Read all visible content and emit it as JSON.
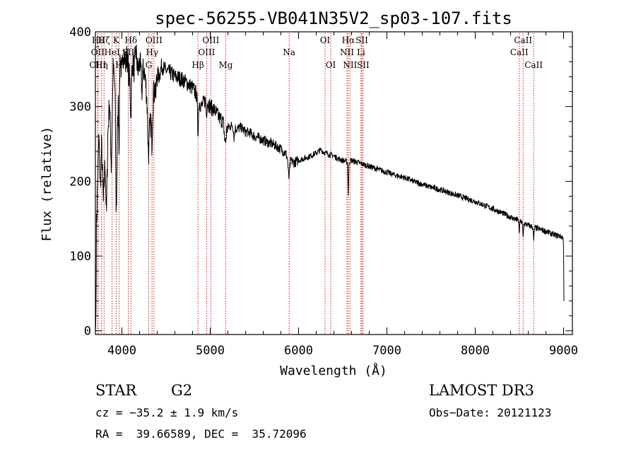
{
  "chart_data": {
    "type": "line",
    "title": "spec-56255-VB041N35V2_sp03-107.fits",
    "xlabel": "Wavelength (Å)",
    "ylabel": "Flux (relative)",
    "xlim": [
      3700,
      9100
    ],
    "ylim": [
      -5,
      400
    ],
    "xticks": [
      4000,
      5000,
      6000,
      7000,
      8000,
      9000
    ],
    "yticks": [
      0,
      100,
      200,
      300,
      400
    ],
    "colors": {
      "spectrum": "#000000",
      "line_markers": "#cc0000"
    },
    "continuum": [
      [
        3700,
        0
      ],
      [
        3705,
        10
      ],
      [
        3712,
        140
      ],
      [
        3725,
        200
      ],
      [
        3740,
        260
      ],
      [
        3755,
        190
      ],
      [
        3770,
        250
      ],
      [
        3790,
        170
      ],
      [
        3810,
        230
      ],
      [
        3825,
        150
      ],
      [
        3840,
        260
      ],
      [
        3860,
        310
      ],
      [
        3880,
        220
      ],
      [
        3900,
        350
      ],
      [
        3920,
        330
      ],
      [
        3940,
        200
      ],
      [
        3960,
        320
      ],
      [
        3980,
        370
      ],
      [
        4000,
        340
      ],
      [
        4020,
        380
      ],
      [
        4040,
        355
      ],
      [
        4060,
        370
      ],
      [
        4080,
        340
      ],
      [
        4100,
        330
      ],
      [
        4120,
        360
      ],
      [
        4140,
        350
      ],
      [
        4160,
        375
      ],
      [
        4180,
        345
      ],
      [
        4200,
        360
      ],
      [
        4220,
        340
      ],
      [
        4250,
        350
      ],
      [
        4280,
        320
      ],
      [
        4300,
        300
      ],
      [
        4320,
        275
      ],
      [
        4350,
        310
      ],
      [
        4380,
        330
      ],
      [
        4400,
        345
      ],
      [
        4420,
        340
      ],
      [
        4450,
        355
      ],
      [
        4480,
        350
      ],
      [
        4500,
        348
      ],
      [
        4550,
        345
      ],
      [
        4600,
        340
      ],
      [
        4650,
        338
      ],
      [
        4700,
        335
      ],
      [
        4750,
        330
      ],
      [
        4800,
        325
      ],
      [
        4850,
        315
      ],
      [
        4900,
        300
      ],
      [
        4950,
        310
      ],
      [
        5000,
        300
      ],
      [
        5050,
        295
      ],
      [
        5100,
        285
      ],
      [
        5150,
        280
      ],
      [
        5200,
        272
      ],
      [
        5250,
        275
      ],
      [
        5300,
        270
      ],
      [
        5350,
        272
      ],
      [
        5400,
        266
      ],
      [
        5450,
        265
      ],
      [
        5500,
        260
      ],
      [
        5550,
        258
      ],
      [
        5600,
        255
      ],
      [
        5650,
        252
      ],
      [
        5700,
        250
      ],
      [
        5750,
        247
      ],
      [
        5800,
        243
      ],
      [
        5850,
        238
      ],
      [
        5900,
        228
      ],
      [
        5950,
        225
      ],
      [
        6000,
        228
      ],
      [
        6050,
        230
      ],
      [
        6100,
        232
      ],
      [
        6150,
        235
      ],
      [
        6200,
        238
      ],
      [
        6250,
        242
      ],
      [
        6300,
        238
      ],
      [
        6350,
        236
      ],
      [
        6400,
        234
      ],
      [
        6450,
        230
      ],
      [
        6500,
        228
      ],
      [
        6550,
        226
      ],
      [
        6600,
        228
      ],
      [
        6650,
        226
      ],
      [
        6700,
        224
      ],
      [
        6750,
        222
      ],
      [
        6800,
        220
      ],
      [
        6850,
        218
      ],
      [
        6900,
        216
      ],
      [
        6950,
        214
      ],
      [
        7000,
        212
      ],
      [
        7100,
        208
      ],
      [
        7200,
        205
      ],
      [
        7300,
        200
      ],
      [
        7400,
        196
      ],
      [
        7500,
        192
      ],
      [
        7600,
        189
      ],
      [
        7700,
        185
      ],
      [
        7800,
        181
      ],
      [
        7900,
        177
      ],
      [
        8000,
        173
      ],
      [
        8100,
        168
      ],
      [
        8200,
        163
      ],
      [
        8300,
        158
      ],
      [
        8400,
        152
      ],
      [
        8500,
        147
      ],
      [
        8600,
        141
      ],
      [
        8700,
        137
      ],
      [
        8800,
        133
      ],
      [
        8900,
        128
      ],
      [
        8950,
        127
      ],
      [
        8990,
        125
      ],
      [
        9000,
        118
      ],
      [
        9005,
        20
      ]
    ],
    "absorption": [
      [
        3934,
        70,
        6
      ],
      [
        3968,
        90,
        6
      ],
      [
        4102,
        40,
        8
      ],
      [
        4227,
        20,
        6
      ],
      [
        4300,
        60,
        12
      ],
      [
        4340,
        45,
        8
      ],
      [
        4383,
        20,
        6
      ],
      [
        4861,
        45,
        8
      ],
      [
        4957,
        20,
        6
      ],
      [
        5170,
        25,
        15
      ],
      [
        5270,
        15,
        8
      ],
      [
        5890,
        25,
        12
      ],
      [
        6563,
        45,
        6
      ],
      [
        8498,
        15,
        6
      ],
      [
        8542,
        20,
        6
      ],
      [
        8662,
        18,
        6
      ]
    ],
    "line_marks": [
      {
        "x": 3730,
        "label": "Hθ",
        "row": 0
      },
      {
        "x": 3727,
        "label": "OII",
        "row": 1
      },
      {
        "x": 3727,
        "label": "OIII",
        "row": 2
      },
      {
        "x": 3770,
        "label": "Hη",
        "row": 2
      },
      {
        "x": 3798,
        "label": "Hζ",
        "row": 0
      },
      {
        "x": 3889,
        "label": "HeI",
        "row": 1
      },
      {
        "x": 3934,
        "label": "K",
        "row": 0
      },
      {
        "x": 3968,
        "label": "H",
        "row": 2
      },
      {
        "x": 4072,
        "label": "SII",
        "row": 1
      },
      {
        "x": 4102,
        "label": "Hδ",
        "row": 0
      },
      {
        "x": 4304,
        "label": "G",
        "row": 2
      },
      {
        "x": 4341,
        "label": "Hγ",
        "row": 1
      },
      {
        "x": 4363,
        "label": "OIII",
        "row": 0
      },
      {
        "x": 4861,
        "label": "Hβ",
        "row": 2
      },
      {
        "x": 4959,
        "label": "OIII",
        "row": 1
      },
      {
        "x": 5007,
        "label": "OIII",
        "row": 0
      },
      {
        "x": 5175,
        "label": "Mg",
        "row": 2
      },
      {
        "x": 5893,
        "label": "Na",
        "row": 1
      },
      {
        "x": 6300,
        "label": "OI",
        "row": 0
      },
      {
        "x": 6364,
        "label": "OI",
        "row": 2
      },
      {
        "x": 6548,
        "label": "NII",
        "row": 1
      },
      {
        "x": 6563,
        "label": "Hα",
        "row": 0
      },
      {
        "x": 6583,
        "label": "NII",
        "row": 2
      },
      {
        "x": 6707,
        "label": "Li",
        "row": 1
      },
      {
        "x": 6716,
        "label": "SII",
        "row": 0
      },
      {
        "x": 6731,
        "label": "SII",
        "row": 2
      },
      {
        "x": 8498,
        "label": "CaII",
        "row": 1
      },
      {
        "x": 8542,
        "label": "CaII",
        "row": 0
      },
      {
        "x": 8662,
        "label": "CaII",
        "row": 2
      }
    ]
  },
  "info": {
    "object_class": "STAR",
    "subclass": "G2",
    "survey": "LAMOST DR3",
    "redshift": "cz = −35.2 ± 1.9 km/s",
    "obs_date": "Obs−Date: 20121123",
    "coords": "RA =  39.66589, DEC =  35.72096"
  }
}
